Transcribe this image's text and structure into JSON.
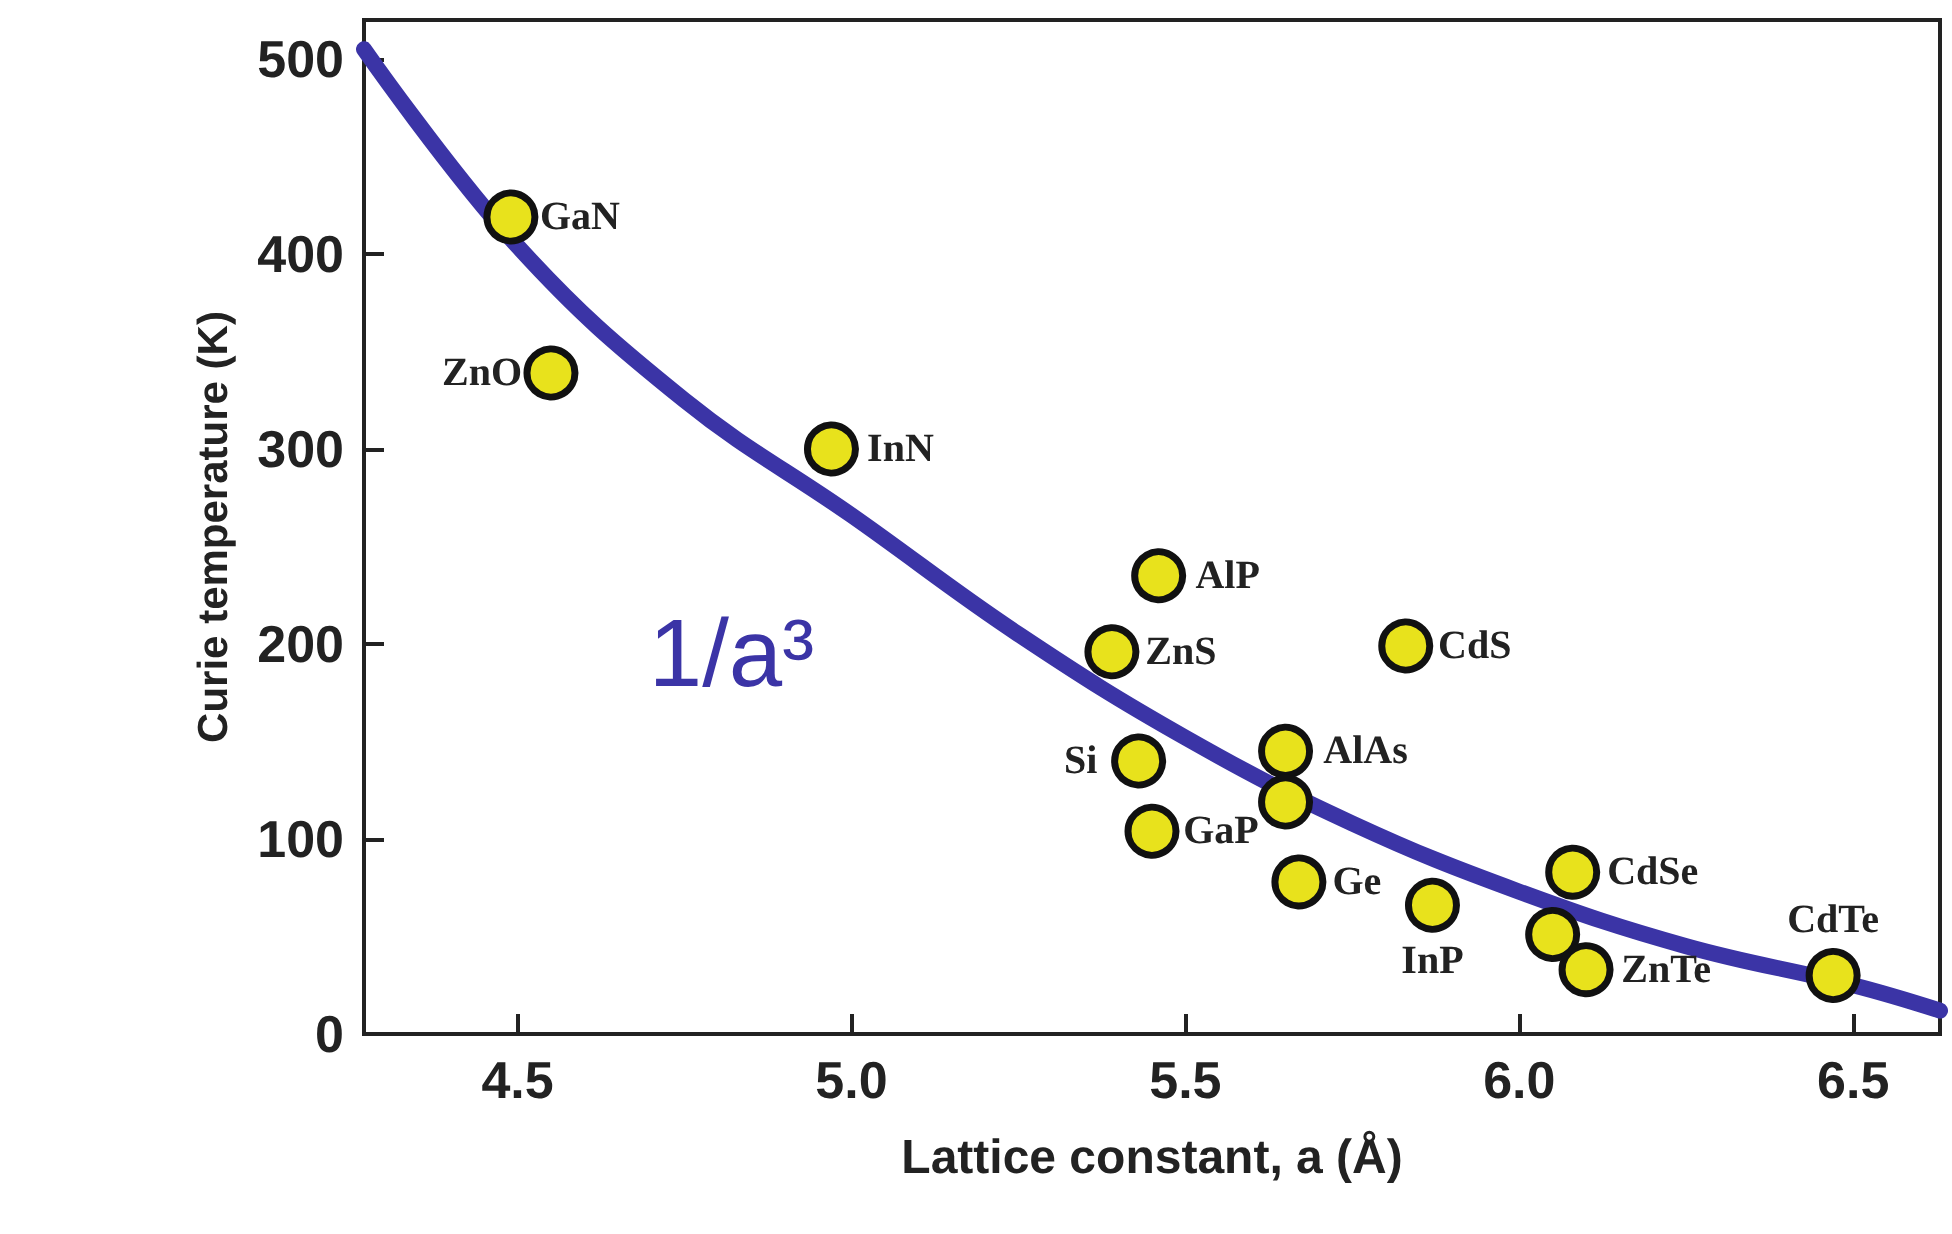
{
  "chart_data": {
    "type": "scatter",
    "xlabel": "Lattice constant, a (Å)",
    "ylabel": "Curie temperature (K)",
    "xlim": [
      4.27,
      6.63
    ],
    "ylim": [
      0,
      520
    ],
    "xticks": [
      4.5,
      {
        "value": 5,
        "label": "5.0"
      },
      5.5,
      {
        "value": 6,
        "label": "6.0"
      },
      6.5
    ],
    "yticks": [
      0,
      100,
      200,
      300,
      400,
      500
    ],
    "grid": false,
    "marker": "circle",
    "series": [
      {
        "type": "line",
        "color": "#3b34a6",
        "line_style": "solid",
        "marker": "none",
        "x": [
          4.27,
          4.5,
          4.75,
          5.0,
          5.25,
          5.5,
          5.75,
          6.0,
          6.25,
          6.5,
          6.63
        ],
        "values": [
          505,
          404,
          325,
          266,
          205,
          152,
          108,
          73,
          45,
          25,
          12
        ]
      },
      {
        "color": "#e8e21c",
        "x": [
          4.49,
          4.55,
          4.97,
          5.46,
          5.39,
          5.83,
          5.43,
          5.65,
          5.65,
          5.45,
          5.67,
          5.87,
          6.08,
          6.05,
          6.1,
          6.47
        ],
        "values": [
          419,
          339,
          300,
          235,
          196,
          199,
          140,
          145,
          119,
          104,
          78,
          66,
          83,
          51,
          33,
          30
        ]
      }
    ],
    "annotations": [
      {
        "text": "GaN",
        "x": 4.49,
        "y": 419
      },
      {
        "text": "ZnO",
        "x": 4.55,
        "y": 339
      },
      {
        "text": "InN",
        "x": 4.97,
        "y": 300
      },
      {
        "text": "AlP",
        "x": 5.46,
        "y": 235
      },
      {
        "text": "ZnS",
        "x": 5.39,
        "y": 196
      },
      {
        "text": "CdS",
        "x": 5.83,
        "y": 199
      },
      {
        "text": "Si",
        "x": 5.43,
        "y": 140
      },
      {
        "text": "AlAs",
        "x": 5.65,
        "y": 145
      },
      {
        "text": "GaP",
        "x": 5.45,
        "y": 104
      },
      {
        "text": "Ge",
        "x": 5.67,
        "y": 78
      },
      {
        "text": "InP",
        "x": 5.87,
        "y": 66
      },
      {
        "text": "CdSe",
        "x": 6.08,
        "y": 83
      },
      {
        "text": "ZnTe",
        "x": 6.1,
        "y": 33
      },
      {
        "text": "CdTe",
        "x": 6.47,
        "y": 30
      },
      {
        "text": "1/a³",
        "x": 5.0,
        "y": 266
      }
    ]
  }
}
